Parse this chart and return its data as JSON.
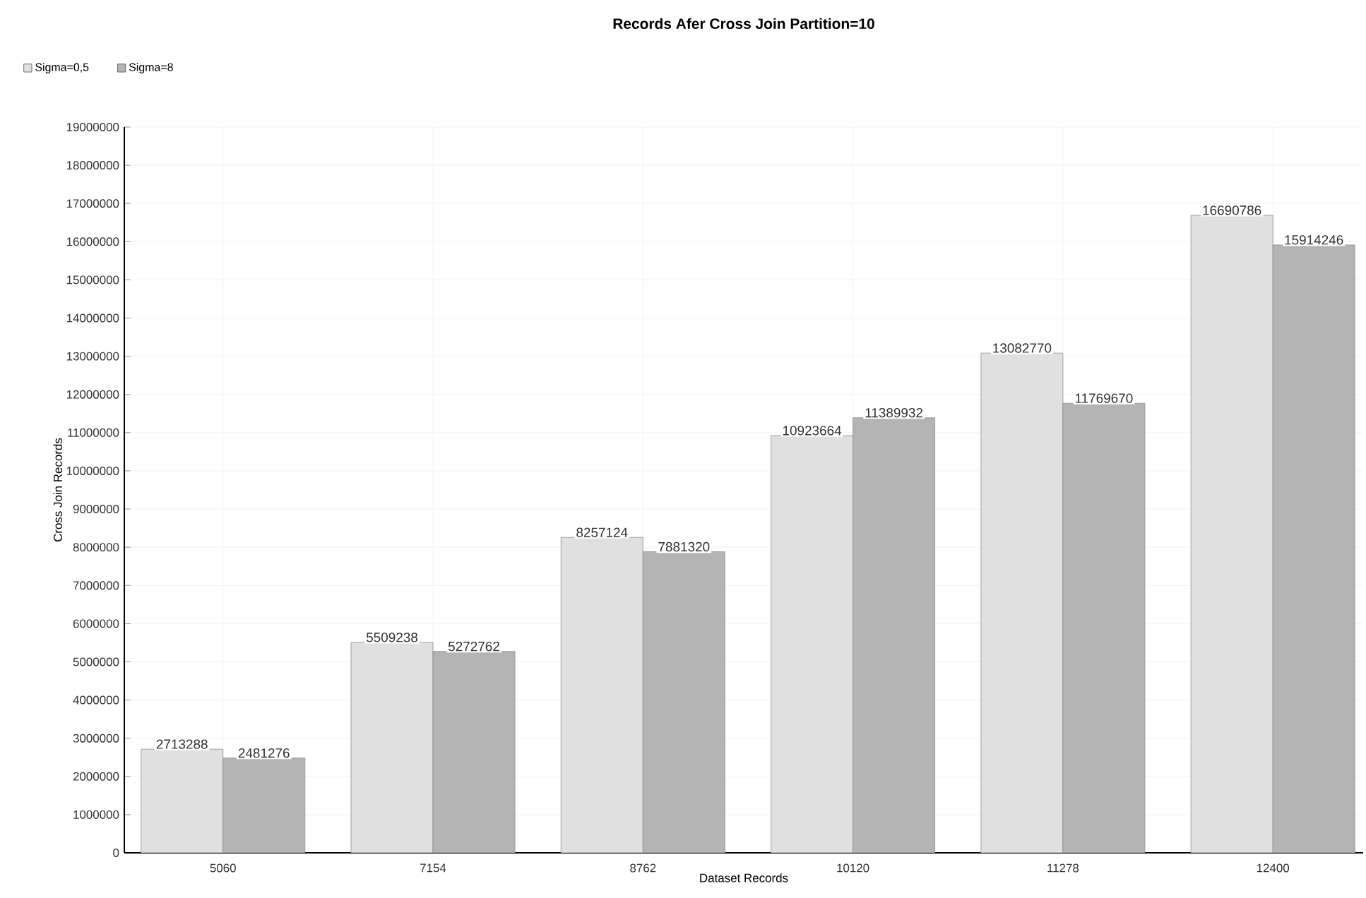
{
  "chart_data": {
    "type": "bar",
    "title": "Records Afer Cross Join Partition=10",
    "xlabel": "Dataset Records",
    "ylabel": "Cross Join Records",
    "categories": [
      "5060",
      "7154",
      "8762",
      "10120",
      "11278",
      "12400"
    ],
    "series": [
      {
        "name": "Sigma=0,5",
        "color": "#e0e0e0",
        "values": [
          2713288,
          5509238,
          8257124,
          10923664,
          13082770,
          16690786
        ]
      },
      {
        "name": "Sigma=8",
        "color": "#b4b4b4",
        "values": [
          2481276,
          5272762,
          7881320,
          11389932,
          11769670,
          15914246
        ]
      }
    ],
    "ylim": [
      0,
      19000000
    ],
    "yticks": [
      0,
      1000000,
      2000000,
      3000000,
      4000000,
      5000000,
      6000000,
      7000000,
      8000000,
      9000000,
      10000000,
      11000000,
      12000000,
      13000000,
      14000000,
      15000000,
      16000000,
      17000000,
      18000000,
      19000000
    ],
    "grid": true,
    "legend": "top left",
    "data_labels": true
  }
}
